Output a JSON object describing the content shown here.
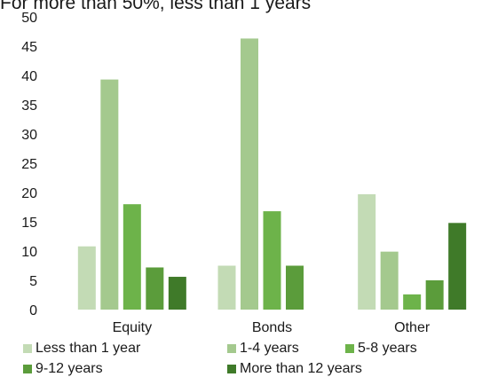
{
  "chart_data": {
    "type": "bar",
    "title": "For more than 50%, less than 1 years",
    "categories": [
      "Equity",
      "Bonds",
      "Other"
    ],
    "ylim": [
      0,
      50
    ],
    "yticks": [
      0,
      5,
      10,
      15,
      20,
      25,
      30,
      35,
      40,
      45,
      50
    ],
    "grid": false,
    "legend_position": "bottom",
    "series": [
      {
        "name": "Less than 1 year",
        "color": "#c3dbb5",
        "values": [
          10.8,
          7.5,
          19.7
        ]
      },
      {
        "name": "1-4 years",
        "color": "#a4c98e",
        "values": [
          39.3,
          46.3,
          9.9
        ]
      },
      {
        "name": "5-8 years",
        "color": "#6db34a",
        "values": [
          18.0,
          16.8,
          2.6
        ]
      },
      {
        "name": "9-12 years",
        "color": "#5b9c3b",
        "values": [
          7.2,
          7.5,
          5.0
        ]
      },
      {
        "name": "More than 12 years",
        "color": "#3f7a29",
        "values": [
          5.6,
          0,
          14.8
        ]
      }
    ]
  }
}
